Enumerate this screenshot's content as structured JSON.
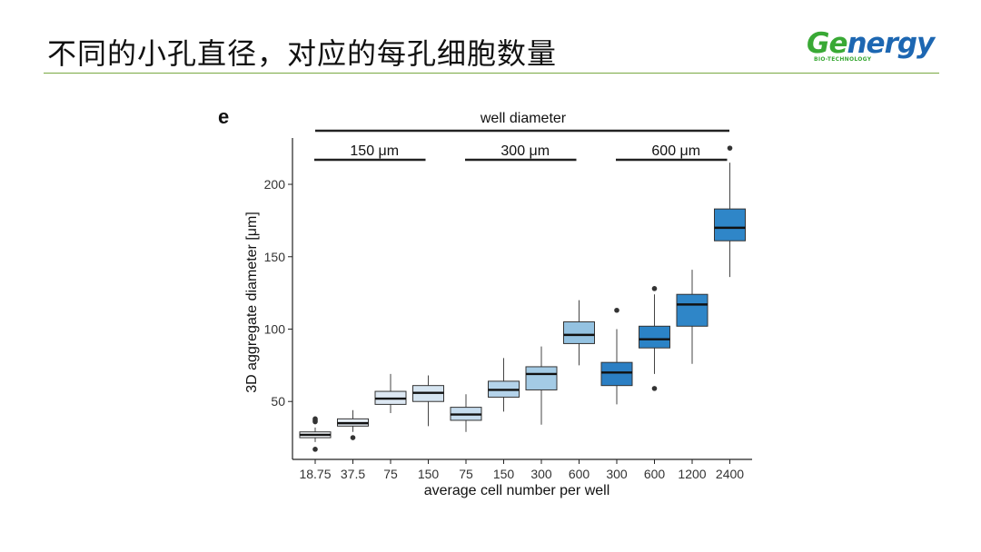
{
  "slide": {
    "title": "不同的小孔直径，对应的每孔细胞数量"
  },
  "logo": {
    "name_part1": "Ge",
    "name_part2": "nergy",
    "tagline": "BIO-TECHNOLOGY"
  },
  "colors": {
    "accent_rule": "#7aa842",
    "logo_green": "#39a935",
    "logo_blue": "#1d67b2"
  },
  "chart_data": {
    "type": "box",
    "panel_label": "e",
    "xlabel": "average cell number per well",
    "ylabel": "3D aggregate diameter [μm]",
    "ylim": [
      10,
      232
    ],
    "yticks": [
      50,
      100,
      150,
      200
    ],
    "group_title": "well diameter",
    "groups": [
      {
        "label": "150 μm",
        "from": 0,
        "to": 3
      },
      {
        "label": "300 μm",
        "from": 4,
        "to": 7
      },
      {
        "label": "600 μm",
        "from": 8,
        "to": 11
      }
    ],
    "categories": [
      "18.75",
      "37.5",
      "75",
      "150",
      "75",
      "150",
      "300",
      "600",
      "300",
      "600",
      "1200",
      "2400"
    ],
    "boxes": [
      {
        "min": 22,
        "q1": 25,
        "median": 27,
        "q3": 29,
        "max": 32,
        "outliers": [
          17,
          36,
          37,
          38
        ],
        "color": "#f2f5f9"
      },
      {
        "min": 29,
        "q1": 33,
        "median": 35,
        "q3": 38,
        "max": 44,
        "outliers": [
          25
        ],
        "color": "#e7eef6"
      },
      {
        "min": 42,
        "q1": 48,
        "median": 52,
        "q3": 57,
        "max": 69,
        "outliers": [],
        "color": "#dde8f3"
      },
      {
        "min": 33,
        "q1": 50,
        "median": 56,
        "q3": 61,
        "max": 68,
        "outliers": [],
        "color": "#d6e5f1"
      },
      {
        "min": 29,
        "q1": 37,
        "median": 41,
        "q3": 46,
        "max": 55,
        "outliers": [],
        "color": "#c6dcee"
      },
      {
        "min": 43,
        "q1": 53,
        "median": 58,
        "q3": 64,
        "max": 80,
        "outliers": [],
        "color": "#b4d3ea"
      },
      {
        "min": 34,
        "q1": 58,
        "median": 69,
        "q3": 74,
        "max": 88,
        "outliers": [],
        "color": "#a4cbe5"
      },
      {
        "min": 75,
        "q1": 90,
        "median": 96,
        "q3": 105,
        "max": 120,
        "outliers": [],
        "color": "#94c2e1"
      },
      {
        "min": 48,
        "q1": 61,
        "median": 70,
        "q3": 77,
        "max": 100,
        "outliers": [
          113
        ],
        "color": "#2b7fc4"
      },
      {
        "min": 69,
        "q1": 87,
        "median": 93,
        "q3": 102,
        "max": 124,
        "outliers": [
          59,
          128
        ],
        "color": "#2b83c6"
      },
      {
        "min": 76,
        "q1": 102,
        "median": 117,
        "q3": 124,
        "max": 141,
        "outliers": [],
        "color": "#2f86c8"
      },
      {
        "min": 136,
        "q1": 161,
        "median": 170,
        "q3": 183,
        "max": 215,
        "outliers": [
          225
        ],
        "color": "#2f86c8"
      }
    ]
  }
}
